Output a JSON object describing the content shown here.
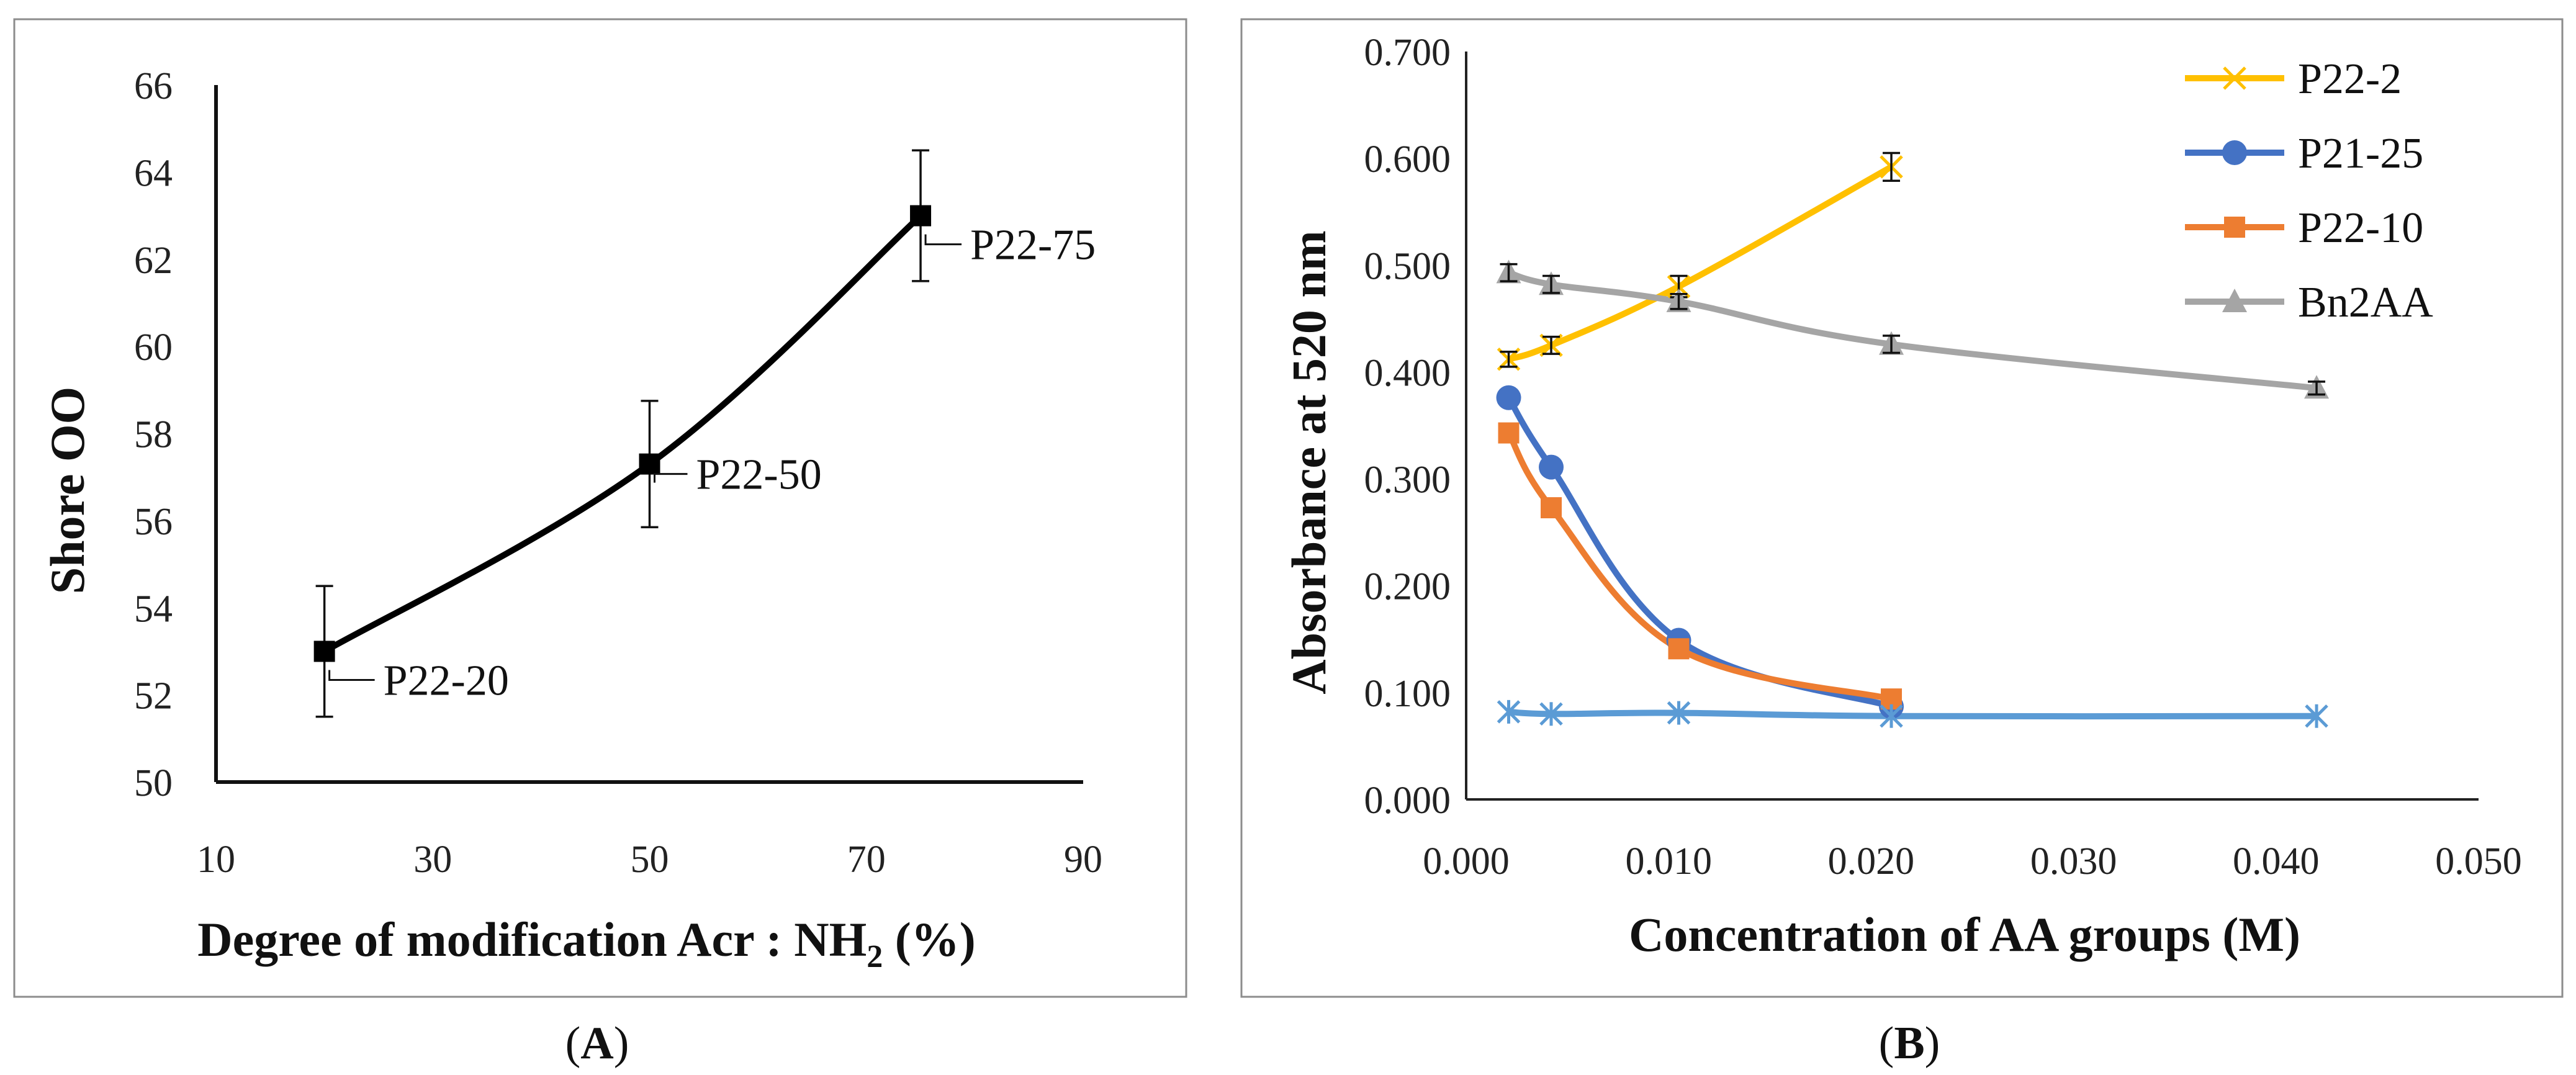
{
  "chart_data": [
    {
      "panel_label": "A",
      "type": "line",
      "title": "",
      "xlabel": "Degree of modification Acr : NH",
      "xlabel_sub": "2",
      "xlabel_suffix": " (%)",
      "ylabel": "Shore OO",
      "xlim": [
        10,
        90
      ],
      "ylim": [
        50,
        66
      ],
      "xticks": [
        10,
        30,
        50,
        70,
        90
      ],
      "yticks": [
        50,
        52,
        54,
        56,
        58,
        60,
        62,
        64,
        66
      ],
      "series": [
        {
          "name": "Shore OO",
          "color": "#000000",
          "marker": "square",
          "x": [
            20,
            50,
            75
          ],
          "y": [
            53.0,
            57.3,
            63.0
          ],
          "err": [
            1.5,
            1.45,
            1.5
          ],
          "labels": [
            "P22-20",
            "P22-50",
            "P22-75"
          ]
        }
      ]
    },
    {
      "panel_label": "B",
      "type": "line",
      "title": "",
      "xlabel": "Concentration of AA groups (M)",
      "ylabel": "Absorbance at 520 nm",
      "xlim": [
        0.0,
        0.05
      ],
      "ylim": [
        0.0,
        0.7
      ],
      "xticks": [
        "0.000",
        "0.010",
        "0.020",
        "0.030",
        "0.040",
        "0.050"
      ],
      "yticks": [
        "0.000",
        "0.100",
        "0.200",
        "0.300",
        "0.400",
        "0.500",
        "0.600",
        "0.700"
      ],
      "legend_position": "top-right",
      "series": [
        {
          "name": "P22-2",
          "color": "#FFC000",
          "marker": "x",
          "in_legend": true,
          "x": [
            0.0021,
            0.0042,
            0.0105,
            0.021
          ],
          "y": [
            0.412,
            0.425,
            0.48,
            0.592
          ],
          "err": [
            0.007,
            0.008,
            0.01,
            0.013
          ]
        },
        {
          "name": "P21-25",
          "color": "#4472C4",
          "marker": "circle",
          "in_legend": true,
          "x": [
            0.0021,
            0.0042,
            0.0105,
            0.021
          ],
          "y": [
            0.376,
            0.311,
            0.149,
            0.087
          ],
          "err": [
            0,
            0,
            0,
            0
          ]
        },
        {
          "name": "P22-10",
          "color": "#ED7D31",
          "marker": "square",
          "in_legend": true,
          "x": [
            0.0021,
            0.0042,
            0.0105,
            0.021
          ],
          "y": [
            0.343,
            0.273,
            0.141,
            0.094
          ],
          "err": [
            0,
            0,
            0,
            0
          ]
        },
        {
          "name": "Bn2AA",
          "color": "#A5A5A5",
          "marker": "triangle",
          "in_legend": true,
          "x": [
            0.0021,
            0.0042,
            0.0105,
            0.021,
            0.042
          ],
          "y": [
            0.493,
            0.482,
            0.466,
            0.426,
            0.385
          ],
          "err": [
            0.008,
            0.008,
            0.007,
            0.008,
            0.006
          ]
        },
        {
          "name": "",
          "color": "#5B9BD5",
          "marker": "star",
          "in_legend": false,
          "x": [
            0.0021,
            0.0042,
            0.0105,
            0.021,
            0.042
          ],
          "y": [
            0.082,
            0.08,
            0.081,
            0.078,
            0.078
          ],
          "err": [
            0,
            0,
            0,
            0,
            0
          ]
        }
      ]
    }
  ]
}
